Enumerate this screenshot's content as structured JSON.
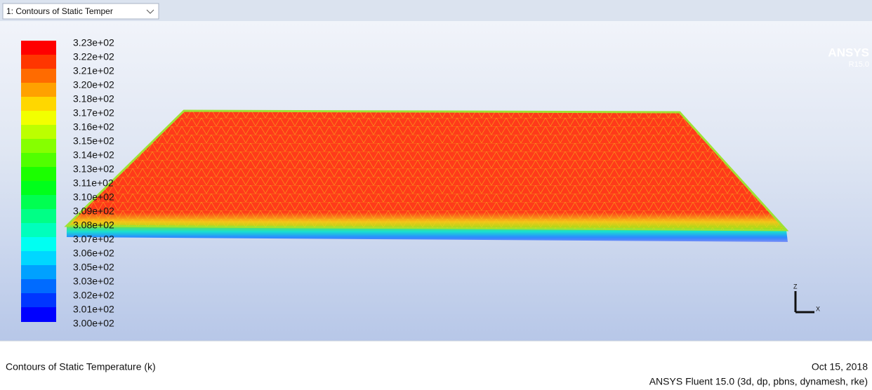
{
  "toolbar": {
    "dropdown": "1: Contours of Static Temper"
  },
  "legend": {
    "labels": [
      "3.23e+02",
      "3.22e+02",
      "3.21e+02",
      "3.20e+02",
      "3.18e+02",
      "3.17e+02",
      "3.16e+02",
      "3.15e+02",
      "3.14e+02",
      "3.13e+02",
      "3.11e+02",
      "3.10e+02",
      "3.09e+02",
      "3.08e+02",
      "3.07e+02",
      "3.06e+02",
      "3.05e+02",
      "3.03e+02",
      "3.02e+02",
      "3.01e+02",
      "3.00e+02"
    ]
  },
  "logo": {
    "name": "ANSYS",
    "version": "R15.0"
  },
  "triad": {
    "z": "Z",
    "x": "X"
  },
  "footer": {
    "title": "Contours of Static Temperature (k)",
    "date": "Oct 15, 2018",
    "solver": "ANSYS Fluent 15.0 (3d, dp, pbns, dynamesh, rke)"
  }
}
